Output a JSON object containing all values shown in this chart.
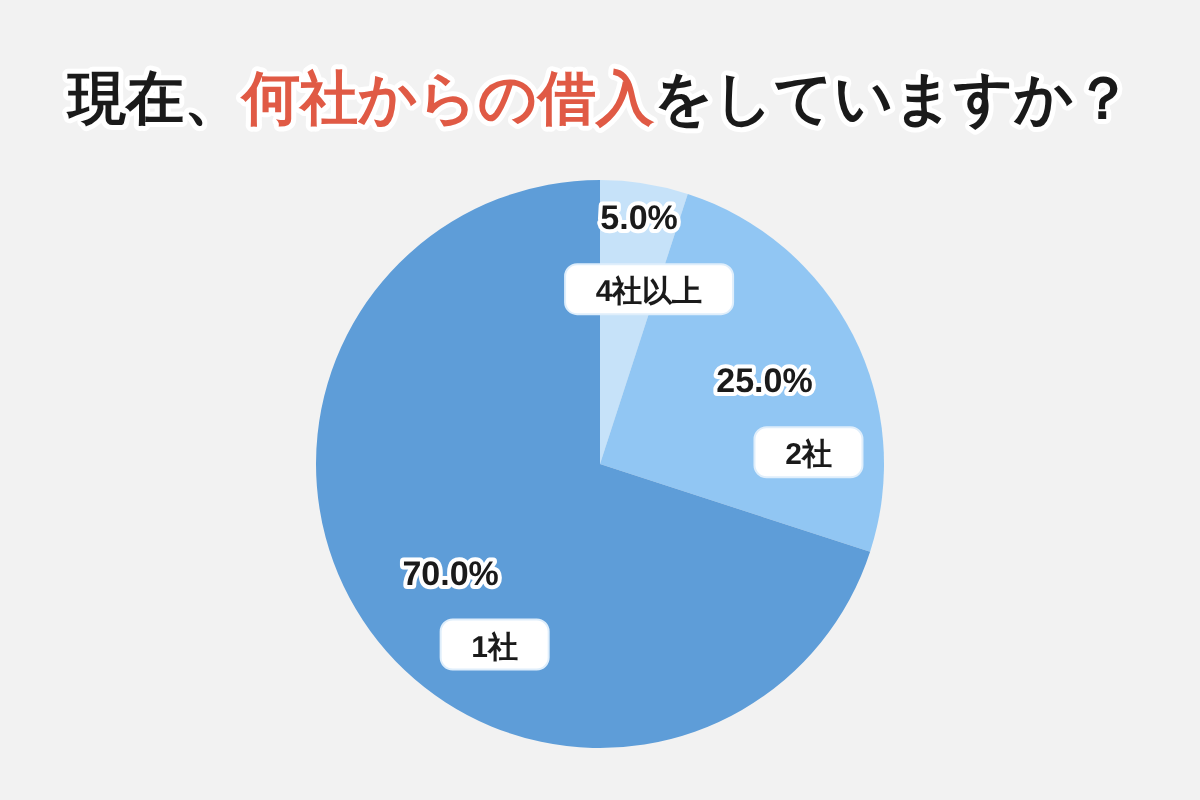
{
  "chart_data": {
    "type": "pie",
    "title": "現在、何社からの借入をしていますか？",
    "categories": [
      "4社以上",
      "2社",
      "1社"
    ],
    "values": [
      5.0,
      25.0,
      70.0
    ],
    "colors": [
      "#c6e2f9",
      "#91c6f3",
      "#5e9dd8"
    ],
    "value_labels": [
      "5.0%",
      "25.0%",
      "70.0%"
    ]
  }
}
